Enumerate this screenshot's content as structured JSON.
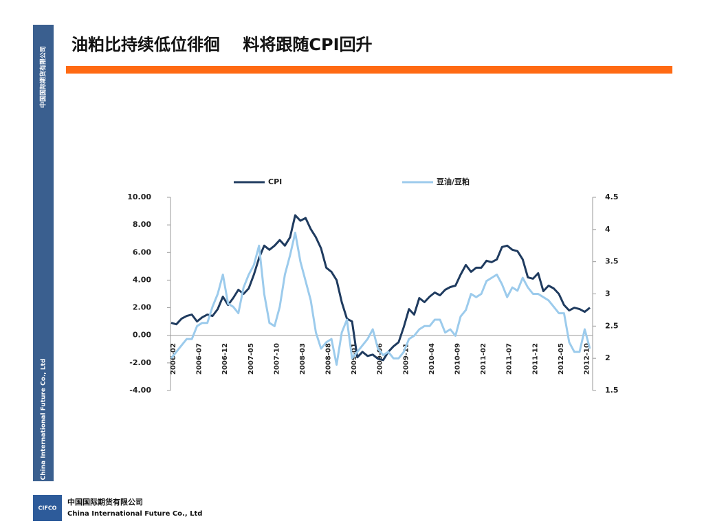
{
  "slide": {
    "title": "油粕比持续低位徘徊    料将跟随CPI回升",
    "sidebar_cn": "中国国际期货有限公司",
    "sidebar_en": "China International Future Co., Ltd",
    "logo": "CIFCO",
    "footer_cn": "中国国际期货有限公司",
    "footer_en": "China International Future Co., Ltd"
  },
  "chart_data": {
    "type": "line",
    "categories": [
      "2006-02",
      null,
      null,
      null,
      null,
      "2006-07",
      null,
      null,
      null,
      null,
      "2006-12",
      null,
      null,
      null,
      null,
      "2007-05",
      null,
      null,
      null,
      null,
      "2007-10",
      null,
      null,
      null,
      null,
      "2008-03",
      null,
      null,
      null,
      null,
      "2008-08",
      null,
      null,
      null,
      null,
      "2009-01",
      null,
      null,
      null,
      null,
      "2009-06",
      null,
      null,
      null,
      null,
      "2009-11",
      null,
      null,
      null,
      null,
      "2010-04",
      null,
      null,
      null,
      null,
      "2010-09",
      null,
      null,
      null,
      null,
      "2011-02",
      null,
      null,
      null,
      null,
      "2011-07",
      null,
      null,
      null,
      null,
      "2011-12",
      null,
      null,
      null,
      null,
      "2012-05",
      null,
      null,
      null,
      null,
      "2012-10",
      null
    ],
    "series": [
      {
        "name": "CPI",
        "color": "#1f3b5f",
        "values": [
          0.9,
          0.8,
          1.2,
          1.4,
          1.5,
          1.0,
          1.3,
          1.5,
          1.4,
          1.9,
          2.8,
          2.2,
          2.7,
          3.3,
          3.0,
          3.4,
          4.4,
          5.6,
          6.5,
          6.2,
          6.5,
          6.9,
          6.5,
          7.1,
          8.7,
          8.3,
          8.5,
          7.7,
          7.1,
          6.3,
          4.9,
          4.6,
          4.0,
          2.4,
          1.2,
          1.0,
          -1.6,
          -1.2,
          -1.5,
          -1.4,
          -1.7,
          -1.8,
          -1.2,
          -0.8,
          -0.5,
          0.6,
          1.9,
          1.5,
          2.7,
          2.4,
          2.8,
          3.1,
          2.9,
          3.3,
          3.5,
          3.6,
          4.4,
          5.1,
          4.6,
          4.9,
          4.9,
          5.4,
          5.3,
          5.5,
          6.4,
          6.5,
          6.2,
          6.1,
          5.5,
          4.2,
          4.1,
          4.5,
          3.2,
          3.6,
          3.4,
          3.0,
          2.2,
          1.8,
          2.0,
          1.9,
          1.7,
          2.0
        ]
      },
      {
        "name": "豆油/豆粕",
        "color": "#9ccbec",
        "axis": "y2",
        "values": [
          2.0,
          2.1,
          2.2,
          2.3,
          2.3,
          2.5,
          2.55,
          2.55,
          2.8,
          3.0,
          3.3,
          2.85,
          2.8,
          2.7,
          3.1,
          3.3,
          3.45,
          3.75,
          3.0,
          2.55,
          2.5,
          2.8,
          3.3,
          3.6,
          3.95,
          3.5,
          3.2,
          2.9,
          2.4,
          2.15,
          2.25,
          2.3,
          1.9,
          2.4,
          2.6,
          2.0,
          2.1,
          2.2,
          2.3,
          2.45,
          2.15,
          2.05,
          2.1,
          2.0,
          2.0,
          2.1,
          2.3,
          2.35,
          2.45,
          2.5,
          2.5,
          2.6,
          2.6,
          2.4,
          2.45,
          2.35,
          2.65,
          2.75,
          3.0,
          2.95,
          3.0,
          3.2,
          3.25,
          3.3,
          3.15,
          2.95,
          3.1,
          3.05,
          3.25,
          3.1,
          3.0,
          3.0,
          2.95,
          2.9,
          2.8,
          2.7,
          2.7,
          2.25,
          2.1,
          2.1,
          2.45,
          2.15
        ]
      }
    ],
    "ylim": [
      -4,
      10
    ],
    "yticks": [
      {
        "value": -4,
        "label": "-4.00"
      },
      {
        "value": -2,
        "label": "-2.00"
      },
      {
        "value": 0,
        "label": "0.00"
      },
      {
        "value": 2,
        "label": "2.00"
      },
      {
        "value": 4,
        "label": "4.00"
      },
      {
        "value": 6,
        "label": "6.00"
      },
      {
        "value": 8,
        "label": "8.00"
      },
      {
        "value": 10,
        "label": "10.00"
      }
    ],
    "y2lim": [
      1.5,
      4.5
    ],
    "y2ticks": [
      1.5,
      2,
      2.5,
      3,
      3.5,
      4,
      4.5
    ],
    "legend": "top",
    "grid": false
  }
}
